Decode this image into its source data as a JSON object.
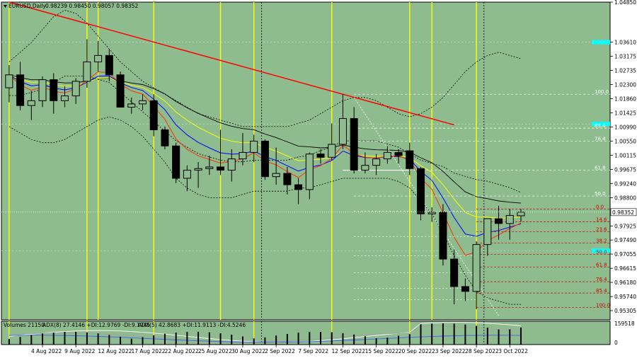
{
  "header": {
    "symbol_text": "EURUSD,Daily",
    "ohlc_text": "0.98239 0.98450 0.98057 0.98352"
  },
  "indicator_header": {
    "volumes_text": "Volumes 21150",
    "adx8_text": "ADX(8) 27.4146 +DI:12.9769 -DI:9.1945",
    "adx5_text": "ADX(5) 42.8683 +DI:11.9113 -DI:4.5246"
  },
  "volume_axis": {
    "max_label": "159518",
    "min_label": "0"
  },
  "current_price": "0.98352",
  "colors": {
    "background": "#8fbc8f",
    "bull_body": "#8fbc8f",
    "bear_body": "#000000",
    "vertical_marker": "#ffff00",
    "trendline": "#ff0000",
    "ema_red": "#ff3300",
    "ema_blue": "#0000ff",
    "ema_yellow": "#ffff00",
    "ema_black": "#000000",
    "bollinger": "#000000",
    "fib_red": "#cc0000",
    "fib_white": "#ffffff",
    "highlight": "#00ffff"
  },
  "chart_data": {
    "type": "candlestick",
    "symbol": "EURUSD",
    "timeframe": "Daily",
    "y_ticks": [
      "1.04850",
      "1.03610",
      "1.03175",
      "1.02735",
      "1.02300",
      "1.01860",
      "1.01425",
      "1.00990",
      "1.00550",
      "1.00115",
      "0.99675",
      "0.99240",
      "0.98800",
      "0.97925",
      "0.97490",
      "0.97055",
      "0.96615",
      "0.96180",
      "0.95740",
      "0.95305"
    ],
    "ylim": [
      0.95021,
      1.0485
    ],
    "x_labels": [
      "4 Aug 2022",
      "9 Aug 2022",
      "12 Aug 2022",
      "17 Aug 2022",
      "22 Aug 2022",
      "25 Aug 2022",
      "30 Aug 2022",
      "2 Sep 2022",
      "7 Sep 2022",
      "12 Sep 2022",
      "15 Sep 2022",
      "20 Sep 2022",
      "23 Sep 2022",
      "28 Sep 2022",
      "3 Oct 2022"
    ],
    "dates": [
      "2022-08-01",
      "2022-08-02",
      "2022-08-03",
      "2022-08-04",
      "2022-08-05",
      "2022-08-08",
      "2022-08-09",
      "2022-08-10",
      "2022-08-11",
      "2022-08-12",
      "2022-08-15",
      "2022-08-16",
      "2022-08-17",
      "2022-08-18",
      "2022-08-19",
      "2022-08-22",
      "2022-08-23",
      "2022-08-24",
      "2022-08-25",
      "2022-08-26",
      "2022-08-29",
      "2022-08-30",
      "2022-08-31",
      "2022-09-01",
      "2022-09-02",
      "2022-09-05",
      "2022-09-06",
      "2022-09-07",
      "2022-09-08",
      "2022-09-09",
      "2022-09-12",
      "2022-09-13",
      "2022-09-14",
      "2022-09-15",
      "2022-09-16",
      "2022-09-19",
      "2022-09-20",
      "2022-09-21",
      "2022-09-22",
      "2022-09-23",
      "2022-09-26",
      "2022-09-27",
      "2022-09-28",
      "2022-09-29",
      "2022-09-30",
      "2022-10-03",
      "2022-10-04"
    ],
    "ohlc": [
      [
        1.022,
        1.029,
        1.0175,
        1.026
      ],
      [
        1.026,
        1.03,
        1.015,
        1.0165
      ],
      [
        1.0165,
        1.021,
        1.012,
        1.018
      ],
      [
        1.018,
        1.0255,
        1.016,
        1.0245
      ],
      [
        1.0245,
        1.0265,
        1.014,
        1.018
      ],
      [
        1.018,
        1.0225,
        1.016,
        1.0195
      ],
      [
        1.0195,
        1.025,
        1.017,
        1.024
      ],
      [
        1.024,
        1.037,
        1.022,
        1.03
      ],
      [
        1.03,
        1.0365,
        1.027,
        1.032
      ],
      [
        1.032,
        1.034,
        1.024,
        1.026
      ],
      [
        1.026,
        1.027,
        1.016,
        1.016
      ],
      [
        1.016,
        1.019,
        1.014,
        1.017
      ],
      [
        1.017,
        1.02,
        1.015,
        1.018
      ],
      [
        1.018,
        1.02,
        1.007,
        1.009
      ],
      [
        1.009,
        1.01,
        1.003,
        1.004
      ],
      [
        1.004,
        1.005,
        0.9925,
        0.994
      ],
      [
        0.994,
        0.998,
        0.99,
        0.9965
      ],
      [
        0.9965,
        0.999,
        0.991,
        0.997
      ],
      [
        0.997,
        1.001,
        0.995,
        0.9975
      ],
      [
        0.9975,
        1.009,
        0.995,
        0.9965
      ],
      [
        0.9965,
        1.003,
        0.993,
        1.0
      ],
      [
        1.0,
        1.008,
        0.998,
        1.002
      ],
      [
        1.002,
        1.0075,
        0.999,
        1.0055
      ],
      [
        1.0055,
        1.006,
        0.9935,
        0.9945
      ],
      [
        0.9945,
        1.0035,
        0.992,
        0.9955
      ],
      [
        0.9955,
        0.9975,
        0.989,
        0.992
      ],
      [
        0.992,
        0.994,
        0.986,
        0.9905
      ],
      [
        0.9905,
        1.002,
        0.9875,
        1.0015
      ],
      [
        1.0015,
        1.003,
        0.9985,
        1.0005
      ],
      [
        1.0005,
        1.011,
        0.9995,
        1.0045
      ],
      [
        1.0045,
        1.02,
        1.003,
        1.0125
      ],
      [
        1.0125,
        1.016,
        0.9955,
        0.9965
      ],
      [
        0.9965,
        1.002,
        0.9955,
        0.998
      ],
      [
        0.998,
        1.0015,
        0.995,
        1.0
      ],
      [
        1.0,
        1.004,
        0.9985,
        1.002
      ],
      [
        1.002,
        1.003,
        0.9985,
        1.001
      ],
      [
        1.0025,
        1.005,
        0.995,
        0.997
      ],
      [
        0.997,
        0.9975,
        0.981,
        0.983
      ],
      [
        0.983,
        0.985,
        0.9805,
        0.9835
      ],
      [
        0.9835,
        0.986,
        0.967,
        0.969
      ],
      [
        0.969,
        0.972,
        0.955,
        0.9605
      ],
      [
        0.9605,
        0.963,
        0.956,
        0.959
      ],
      [
        0.959,
        0.9745,
        0.9535,
        0.9735
      ],
      [
        0.9735,
        0.9815,
        0.97,
        0.9815
      ],
      [
        0.9815,
        0.9855,
        0.975,
        0.98
      ],
      [
        0.98,
        0.9845,
        0.975,
        0.9825
      ],
      [
        0.98239,
        0.9845,
        0.98057,
        0.98352
      ]
    ],
    "fib_left": [
      "0.0",
      "14.6",
      "23.6",
      "38.2",
      "50.0",
      "61.8",
      "76.4",
      "85.4",
      "100.0"
    ],
    "fib_top": [
      "100.0",
      "85.4",
      "76.4",
      "61.8",
      "50.0"
    ],
    "grid": false,
    "legend": "top-left"
  }
}
